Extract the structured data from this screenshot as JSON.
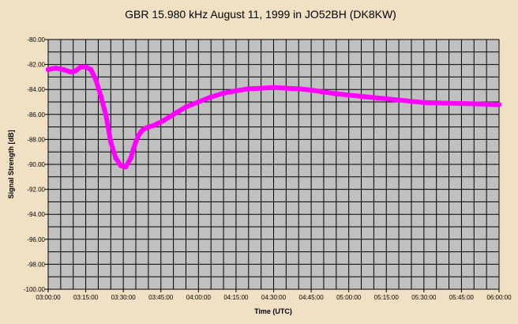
{
  "chart_data": {
    "type": "line",
    "title": "GBR 15.980 kHz August 11, 1999 in JO52BH (DK8KW)",
    "xlabel": "Time (UTC)",
    "ylabel": "Signal Strength [dB]",
    "ylim": [
      -100,
      -80
    ],
    "xlim": [
      "03:00:00",
      "06:00:00"
    ],
    "y_ticks": [
      "-80.00",
      "-82.00",
      "-84.00",
      "-86.00",
      "-88.00",
      "-90.00",
      "-92.00",
      "-94.00",
      "-96.00",
      "-98.00",
      "-100.00"
    ],
    "y_tick_values": [
      -80,
      -82,
      -84,
      -86,
      -88,
      -90,
      -92,
      -94,
      -96,
      -98,
      -100
    ],
    "x_ticks": [
      "03:00:00",
      "03:15:00",
      "03:30:00",
      "03:45:00",
      "04:00:00",
      "04:15:00",
      "04:30:00",
      "04:45:00",
      "05:00:00",
      "05:15:00",
      "05:30:00",
      "05:45:00",
      "06:00:00"
    ],
    "grid": true,
    "legend": "none",
    "plot_background": "#c0c0c0",
    "page_background": "#f0e0c4",
    "grid_color": "#000000",
    "series": [
      {
        "color": "#ff00ff",
        "x": [
          "03:00:00",
          "03:03:00",
          "03:06:00",
          "03:09:00",
          "03:11:00",
          "03:13:00",
          "03:15:00",
          "03:17:00",
          "03:19:00",
          "03:21:00",
          "03:23:00",
          "03:25:00",
          "03:27:00",
          "03:29:00",
          "03:31:00",
          "03:33:00",
          "03:34:00",
          "03:35:00",
          "03:36:00",
          "03:37:00",
          "03:38:00",
          "03:40:00",
          "03:42:00",
          "03:44:00",
          "03:46:00",
          "03:50:00",
          "03:55:00",
          "04:00:00",
          "04:05:00",
          "04:10:00",
          "04:15:00",
          "04:20:00",
          "04:25:00",
          "04:30:00",
          "04:35:00",
          "04:40:00",
          "04:45:00",
          "04:50:00",
          "04:55:00",
          "05:00:00",
          "05:05:00",
          "05:10:00",
          "05:15:00",
          "05:20:00",
          "05:25:00",
          "05:30:00",
          "05:40:00",
          "05:50:00",
          "06:00:00"
        ],
        "values": [
          -82.4,
          -82.3,
          -82.4,
          -82.6,
          -82.5,
          -82.2,
          -82.2,
          -82.4,
          -83.2,
          -84.5,
          -86.0,
          -88.2,
          -89.5,
          -90.1,
          -90.2,
          -89.5,
          -88.8,
          -88.2,
          -87.7,
          -87.4,
          -87.2,
          -87.0,
          -86.9,
          -86.7,
          -86.5,
          -86.0,
          -85.4,
          -85.0,
          -84.6,
          -84.3,
          -84.1,
          -83.95,
          -83.9,
          -83.85,
          -83.9,
          -83.95,
          -84.05,
          -84.2,
          -84.35,
          -84.45,
          -84.55,
          -84.65,
          -84.75,
          -84.85,
          -84.95,
          -85.05,
          -85.1,
          -85.15,
          -85.2
        ]
      }
    ]
  }
}
